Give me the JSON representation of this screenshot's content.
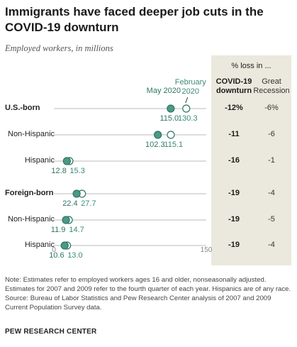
{
  "title": "Immigrants have faced deeper job cuts in the COVID-19 downturn",
  "subtitle": "Employed workers, in millions",
  "table_header": {
    "pct_loss": "% loss in ...",
    "covid": "COVID-19 downturn",
    "great_recession": "Great Recession"
  },
  "note": "Note: Estimates refer to employed workers ages 16 and older, nonseasonally adjusted. Estimates for 2007 and 2009 refer to the fourth quarter of each year. Hispanics are of any race.",
  "source": "Source: Bureau of Labor Statistics and Pew Research Center analysis of 2007 and 2009 Current Population Survey data.",
  "brand": "PEW RESEARCH CENTER",
  "colors": {
    "may_fill": "#4a9a86",
    "may_stroke": "#2e7563",
    "feb_fill": "#ffffff",
    "feb_stroke": "#2e7563",
    "may_label": "#2e7563",
    "feb_label": "#3d8a77",
    "axis_line": "#bbbbbb",
    "shade": "#ebe9dd"
  },
  "chart_data": {
    "type": "dot",
    "xlim": [
      0,
      150
    ],
    "x_ticks": [
      "0",
      "150"
    ],
    "grid": false,
    "legend_placement": "top, labels on U.S.-born row",
    "series": [
      {
        "name": "May 2020",
        "key": "may"
      },
      {
        "name": "February 2020",
        "key": "feb"
      }
    ],
    "rows": [
      {
        "label": "U.S.-born",
        "bold": true,
        "may": 115.0,
        "feb": 130.3,
        "may_label": "115.0",
        "feb_label": "130.3",
        "covid_loss": "-12%",
        "gr_loss": "-6%"
      },
      {
        "label": "Non-Hispanic",
        "bold": false,
        "may": 102.3,
        "feb": 115.1,
        "may_label": "102.3",
        "feb_label": "115.1",
        "covid_loss": "-11",
        "gr_loss": "-6"
      },
      {
        "label": "Hispanic",
        "bold": false,
        "may": 12.8,
        "feb": 15.3,
        "may_label": "12.8",
        "feb_label": "15.3",
        "covid_loss": "-16",
        "gr_loss": "-1"
      },
      {
        "label": "Foreign-born",
        "bold": true,
        "may": 22.4,
        "feb": 27.7,
        "may_label": "22.4",
        "feb_label": "27.7",
        "covid_loss": "-19",
        "gr_loss": "-4"
      },
      {
        "label": "Non-Hispanic",
        "bold": false,
        "may": 11.9,
        "feb": 14.7,
        "may_label": "11.9",
        "feb_label": "14.7",
        "covid_loss": "-19",
        "gr_loss": "-5"
      },
      {
        "label": "Hispanic",
        "bold": false,
        "may": 10.6,
        "feb": 13.0,
        "may_label": "10.6",
        "feb_label": "13.0",
        "covid_loss": "-19",
        "gr_loss": "-4"
      }
    ]
  }
}
